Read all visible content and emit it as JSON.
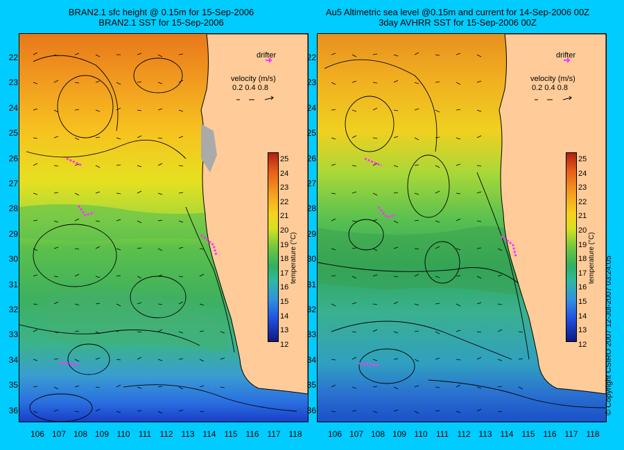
{
  "left_panel": {
    "title_line1": "BRAN2.1 sfc height @ 0.15m for 15-Sep-2006",
    "title_line2": "BRAN2.1 SST for 15-Sep-2006",
    "drifter_label": "drifter",
    "velocity_label": "velocity (m/s)",
    "velocity_values": "0.2 0.4 0.8",
    "colorbar_unit": "temperature (°C)"
  },
  "right_panel": {
    "title_line1": "Au5 Altimetric sea level  @0.15m and current for 14-Sep-2006 00Z",
    "title_line2": "3day AVHRR SST for 15-Sep-2006 00Z",
    "drifter_label": "drifter",
    "velocity_label": "velocity (m/s)",
    "velocity_values": "0.2 0.4 0.8",
    "colorbar_unit": "temperature (°C)"
  },
  "latitude_labels": [
    "22",
    "23",
    "24",
    "25",
    "26",
    "27",
    "28",
    "29",
    "30",
    "31",
    "32",
    "33",
    "34",
    "35",
    "36"
  ],
  "longitude_labels": [
    "106",
    "107",
    "108",
    "109",
    "110",
    "111",
    "112",
    "113",
    "114",
    "115",
    "116",
    "117",
    "118"
  ],
  "colorbar_ticks": [
    "25",
    "24",
    "23",
    "22",
    "21",
    "20",
    "19",
    "18",
    "17",
    "16",
    "15",
    "14",
    "13",
    "12"
  ],
  "copyright": "© Copyright CSIRO 2007   12-Jul-2007 03:24:05",
  "colors": {
    "background": "#00ccff",
    "land": "#ffcc99",
    "drifter": "#ff33ff"
  }
}
